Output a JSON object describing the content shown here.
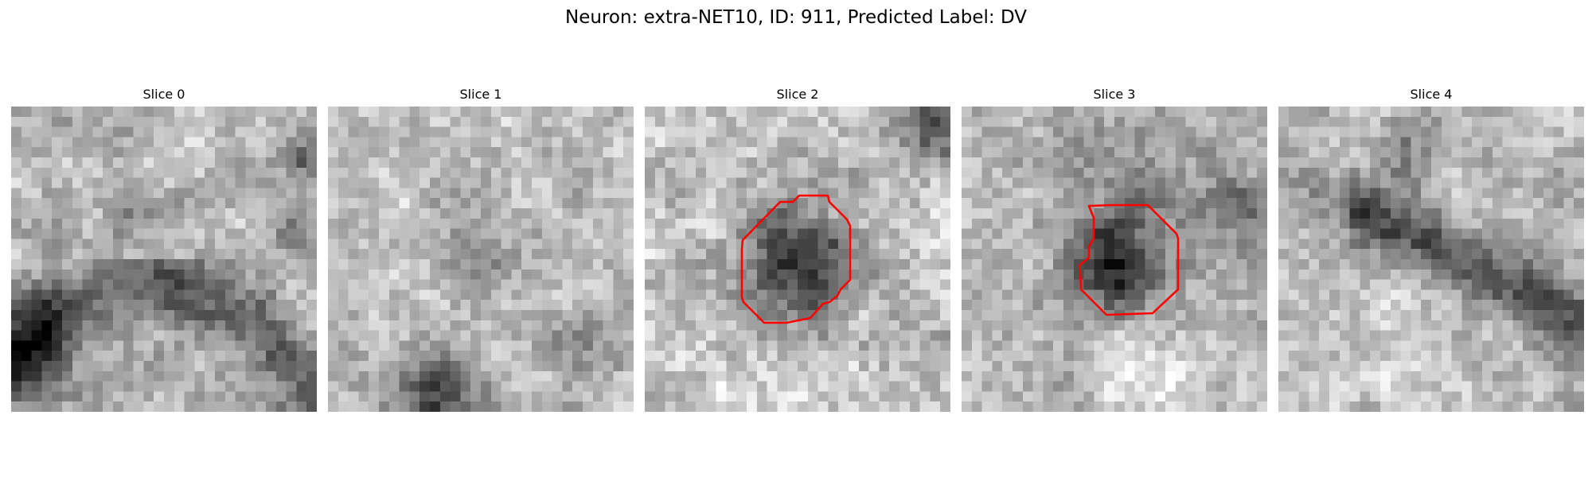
{
  "figure": {
    "title": "Neuron: extra-NET10, ID: 911, Predicted Label: DV",
    "contour_color": "#ff0000"
  },
  "slices": [
    {
      "label": "Slice 0",
      "has_contour": false
    },
    {
      "label": "Slice 1",
      "has_contour": false
    },
    {
      "label": "Slice 2",
      "has_contour": true
    },
    {
      "label": "Slice 3",
      "has_contour": true
    },
    {
      "label": "Slice 4",
      "has_contour": false
    }
  ]
}
